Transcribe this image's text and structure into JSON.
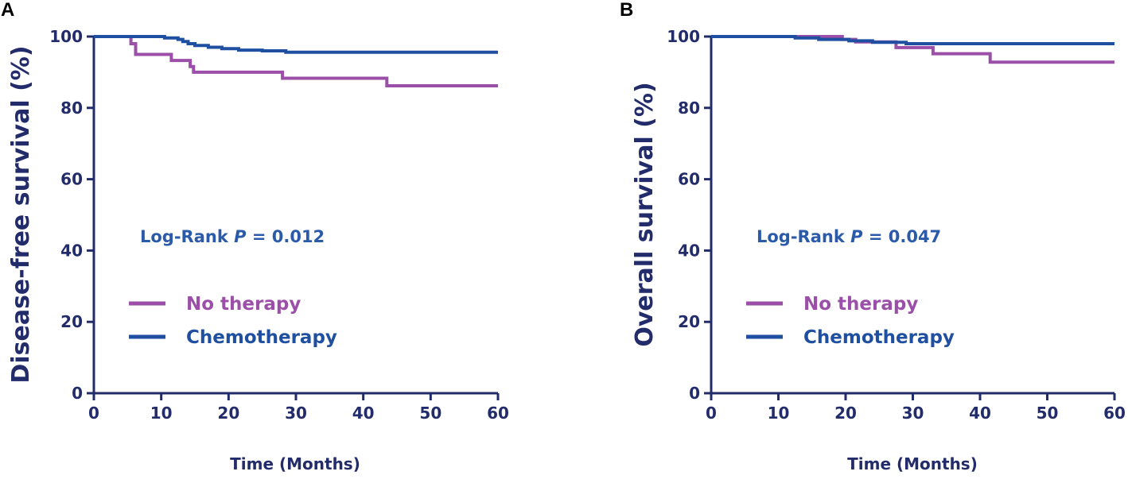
{
  "colors": {
    "axis": "#232c6b",
    "annotation": "#2a5aa8"
  },
  "chart_data": [
    {
      "type": "line",
      "panel_label": "A",
      "title": "",
      "xlabel": "Time (Months)",
      "ylabel": "Disease-free survival (%)",
      "xlim": [
        0,
        60
      ],
      "ylim": [
        0,
        100
      ],
      "xticks": [
        0,
        10,
        20,
        30,
        40,
        50,
        60
      ],
      "yticks": [
        0,
        20,
        40,
        60,
        80,
        100
      ],
      "grid": false,
      "annotation": {
        "prefix": "Log-Rank ",
        "italic": "P",
        "suffix": " = 0.012"
      },
      "legend_position": "center-left",
      "series": [
        {
          "name": "No therapy",
          "color": "#9b4fa8",
          "x": [
            0,
            5.5,
            5.5,
            6.2,
            6.2,
            11.5,
            11.5,
            14.3,
            14.3,
            14.8,
            14.8,
            28,
            28,
            43.5,
            43.5,
            60
          ],
          "y": [
            100,
            100,
            98,
            98,
            95,
            95,
            93.3,
            93.3,
            91.6,
            91.6,
            90,
            90,
            88.3,
            88.3,
            86.2,
            86.2
          ]
        },
        {
          "name": "Chemotherapy",
          "color": "#1f4fa0",
          "x": [
            0,
            10.5,
            10.5,
            12.5,
            12.5,
            13.2,
            13.2,
            14,
            14,
            15,
            15,
            17,
            17,
            19,
            19,
            21.5,
            21.5,
            25,
            25,
            28.5,
            28.5,
            60
          ],
          "y": [
            100,
            100,
            99.6,
            99.6,
            99.2,
            99.2,
            98.6,
            98.6,
            98,
            98,
            97.5,
            97.5,
            97,
            97,
            96.6,
            96.6,
            96.2,
            96.2,
            96,
            96,
            95.6,
            95.6
          ]
        }
      ]
    },
    {
      "type": "line",
      "panel_label": "B",
      "title": "",
      "xlabel": "Time (Months)",
      "ylabel": "Overall survival (%)",
      "xlim": [
        0,
        60
      ],
      "ylim": [
        0,
        100
      ],
      "xticks": [
        0,
        10,
        20,
        30,
        40,
        50,
        60
      ],
      "yticks": [
        0,
        20,
        40,
        60,
        80,
        100
      ],
      "grid": false,
      "annotation": {
        "prefix": "Log-Rank ",
        "italic": "P",
        "suffix": " = 0.047"
      },
      "legend_position": "center-left",
      "series": [
        {
          "name": "No therapy",
          "color": "#9b4fa8",
          "x": [
            0,
            19.5,
            19.5,
            21.5,
            21.5,
            27.5,
            27.5,
            33,
            33,
            41.5,
            41.5,
            60
          ],
          "y": [
            100,
            100,
            99.2,
            99.2,
            98.5,
            98.5,
            96.9,
            96.9,
            95.2,
            95.2,
            92.8,
            92.8
          ]
        },
        {
          "name": "Chemotherapy",
          "color": "#1f4fa0",
          "x": [
            0,
            12.5,
            12.5,
            16,
            16,
            20.5,
            20.5,
            24,
            24,
            29,
            29,
            60
          ],
          "y": [
            100,
            100,
            99.6,
            99.6,
            99.2,
            99.2,
            98.8,
            98.8,
            98.4,
            98.4,
            98,
            98
          ]
        }
      ]
    }
  ]
}
